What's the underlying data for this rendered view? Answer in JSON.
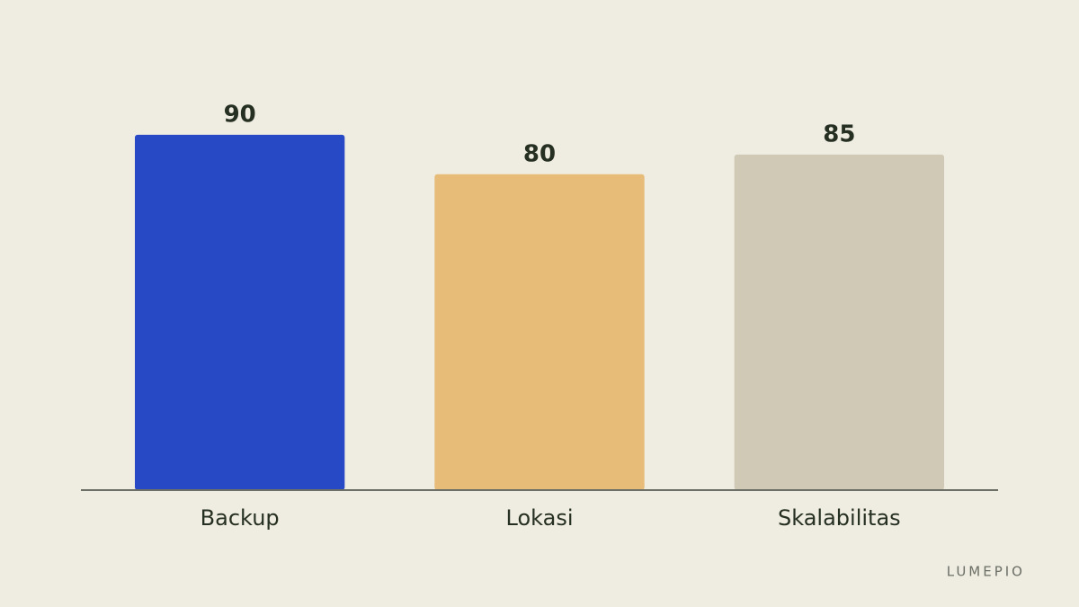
{
  "chart_data": {
    "type": "bar",
    "categories": [
      "Backup",
      "Lokasi",
      "Skalabilitas"
    ],
    "values": [
      90,
      80,
      85
    ],
    "colors": [
      "#2849c6",
      "#e7bc78",
      "#d0c9b6"
    ],
    "ylim": [
      0,
      100
    ],
    "watermark": "LUMEPIO"
  }
}
